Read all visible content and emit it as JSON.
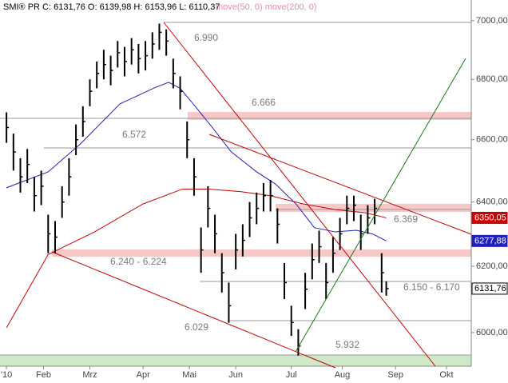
{
  "chart_data": {
    "type": "ohlc",
    "header": "SMI® PR C: 6131,76 O: 6139,98 H: 6153,96 L: 6110,37",
    "indicators_label": "move(50, 0) move(200, 0)",
    "x": [
      0,
      3,
      6,
      9,
      12,
      15,
      18,
      21,
      24,
      27,
      30,
      33,
      36,
      39,
      42,
      45,
      48,
      51,
      54,
      57,
      60,
      63,
      66,
      69,
      72,
      75,
      78,
      81,
      84,
      87,
      90,
      93,
      96,
      99,
      102,
      105,
      108,
      111,
      114,
      117,
      120,
      123,
      126,
      129,
      132,
      135,
      138,
      141,
      144,
      147,
      150,
      153,
      156,
      159,
      162,
      164
    ],
    "close": [
      6640,
      6560,
      6480,
      6520,
      6420,
      6450,
      6300,
      6290,
      6400,
      6480,
      6600,
      6660,
      6760,
      6820,
      6850,
      6830,
      6890,
      6860,
      6900,
      6870,
      6880,
      6920,
      6960,
      6930,
      6820,
      6760,
      6600,
      6480,
      6250,
      6380,
      6300,
      6180,
      6080,
      6250,
      6280,
      6350,
      6380,
      6420,
      6420,
      6330,
      6150,
      6030,
      5960,
      6130,
      6220,
      6260,
      6150,
      6240,
      6300,
      6380,
      6390,
      6300,
      6350,
      6380,
      6180,
      6131.76
    ],
    "high": [
      6690,
      6620,
      6540,
      6570,
      6480,
      6500,
      6360,
      6340,
      6450,
      6540,
      6650,
      6710,
      6800,
      6860,
      6900,
      6880,
      6930,
      6910,
      6940,
      6920,
      6930,
      6960,
      6990,
      6970,
      6870,
      6810,
      6660,
      6540,
      6320,
      6450,
      6360,
      6240,
      6150,
      6300,
      6330,
      6400,
      6430,
      6460,
      6470,
      6380,
      6210,
      6080,
      6010,
      6180,
      6270,
      6310,
      6210,
      6290,
      6350,
      6420,
      6420,
      6360,
      6390,
      6410,
      6240,
      6153.96
    ],
    "low": [
      6590,
      6500,
      6430,
      6460,
      6370,
      6390,
      6240,
      6240,
      6350,
      6420,
      6550,
      6610,
      6710,
      6770,
      6800,
      6780,
      6840,
      6810,
      6850,
      6820,
      6830,
      6870,
      6900,
      6880,
      6770,
      6700,
      6540,
      6420,
      6180,
      6320,
      6240,
      6120,
      6029,
      6190,
      6230,
      6290,
      6330,
      6370,
      6370,
      6270,
      6100,
      5990,
      5932,
      6070,
      6160,
      6210,
      6100,
      6180,
      6250,
      6330,
      6340,
      6250,
      6300,
      6330,
      6120,
      6110.37
    ],
    "color": "#000000",
    "last_label": "6131,76",
    "series": [
      {
        "name": "move(50, 0)",
        "color": "#2020c0",
        "x": [
          0,
          18,
          32,
          49,
          64,
          70,
          75,
          82,
          89,
          97,
          108,
          116,
          125,
          133,
          142,
          151,
          158,
          164
        ],
        "values": [
          6445,
          6496,
          6587,
          6718,
          6772,
          6790,
          6770,
          6705,
          6639,
          6561,
          6496,
          6458,
          6394,
          6319,
          6306,
          6311,
          6300,
          6277.88
        ],
        "last_label": "6277,88"
      },
      {
        "name": "move(200, 0)",
        "color": "#cc0000",
        "x": [
          0,
          18,
          38,
          59,
          76,
          87,
          101,
          114,
          128,
          142,
          155,
          164
        ],
        "values": [
          6014,
          6236,
          6306,
          6394,
          6441,
          6441,
          6433,
          6420,
          6394,
          6376,
          6366,
          6350.05
        ],
        "last_label": "6350,05"
      }
    ],
    "annotations": [
      "6.990",
      "6.666",
      "6.572",
      "6.369",
      "6.240 - 6.224",
      "6.150 - 6.170",
      "6.029",
      "5.932"
    ],
    "log_scale": true,
    "xlim": [
      -2.8,
      200.7
    ],
    "xticks": [
      {
        "value": 0,
        "label": "'10"
      },
      {
        "value": 16,
        "label": "Feb"
      },
      {
        "value": 36,
        "label": "Mrz"
      },
      {
        "value": 59,
        "label": "Apr"
      },
      {
        "value": 79,
        "label": "Mai"
      },
      {
        "value": 99,
        "label": "Jun"
      },
      {
        "value": 123,
        "label": "Jul"
      },
      {
        "value": 145,
        "label": "Aug"
      },
      {
        "value": 168,
        "label": "Sep"
      },
      {
        "value": 190,
        "label": "Okt"
      }
    ],
    "ylim": [
      5901,
      7072
    ],
    "yticks": [
      {
        "value": 6000,
        "label": "6000,00"
      },
      {
        "value": 6200,
        "label": "6200,00"
      },
      {
        "value": 6400,
        "label": "6400,00"
      },
      {
        "value": 6600,
        "label": "6600,00"
      },
      {
        "value": 6800,
        "label": "6800,00"
      },
      {
        "value": 7000,
        "label": "7000,00"
      }
    ]
  }
}
